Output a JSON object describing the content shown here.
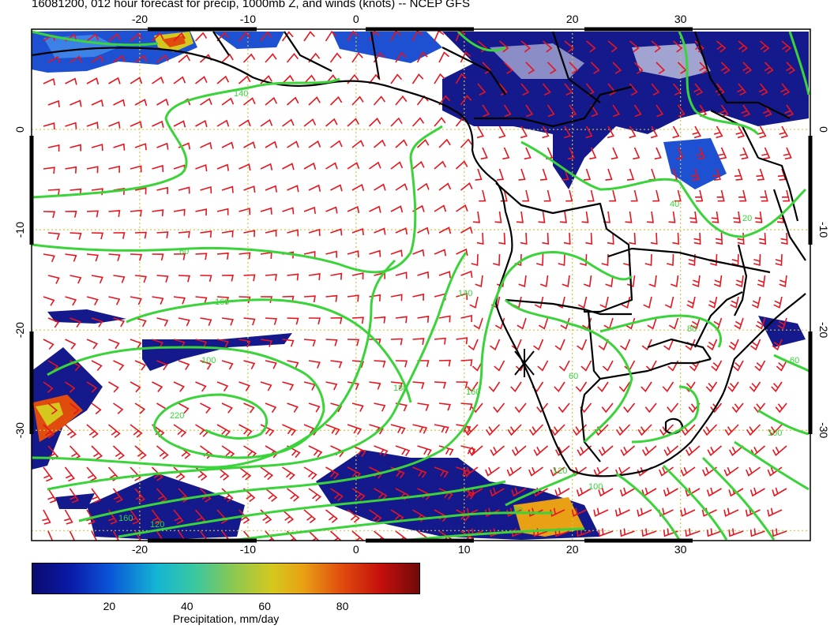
{
  "title": "16081200, 012 hour forecast for precip, 1000mb Z, and winds (knots) -- NCEP GFS",
  "map": {
    "lon_range": [
      -30,
      42
    ],
    "lat_range": [
      -41,
      10
    ],
    "lon_ticks_bottom": [
      "-20",
      "-10",
      "0",
      "10",
      "20",
      "30"
    ],
    "lon_ticks_top": [
      "-20",
      "-10",
      "0",
      "20",
      "30"
    ],
    "lat_ticks": [
      "0",
      "-10",
      "-20",
      "-30"
    ],
    "lon_values": [
      -20,
      -10,
      0,
      10,
      20,
      30
    ],
    "lat_values": [
      0,
      -10,
      -20,
      -30
    ],
    "contour_labels": [
      "140",
      "60",
      "160",
      "100",
      "220",
      "180",
      "160",
      "140",
      "120",
      "100",
      "80",
      "60",
      "40",
      "20",
      "60",
      "80",
      "100",
      "120",
      "160"
    ],
    "colors": {
      "contour": "#3ad33a",
      "barb": "#e8141e",
      "coast": "#000000",
      "grid": "#d4c24a",
      "precip_dark": "#141a8c",
      "precip_mid": "#1e50d2",
      "precip_light": "#3c82e6"
    },
    "marker": "X"
  },
  "colorbar": {
    "ticks": [
      "20",
      "40",
      "60",
      "80"
    ],
    "tick_values": [
      20,
      40,
      60,
      80
    ],
    "range": [
      0,
      100
    ],
    "label": "Precipitation, mm/day"
  }
}
